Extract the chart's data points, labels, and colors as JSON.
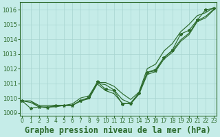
{
  "background_color": "#c5ece8",
  "grid_color": "#a8d5d0",
  "line_color": "#2d6b2d",
  "title": "Graphe pression niveau de la mer (hPa)",
  "ylim": [
    1008.8,
    1016.5
  ],
  "yticks": [
    1009,
    1010,
    1011,
    1012,
    1013,
    1014,
    1015,
    1016
  ],
  "xticks": [
    0,
    1,
    2,
    3,
    4,
    5,
    6,
    7,
    8,
    9,
    10,
    11,
    12,
    13,
    14,
    15,
    16,
    17,
    18,
    19,
    20,
    21,
    22,
    23
  ],
  "x": [
    0,
    1,
    2,
    3,
    4,
    5,
    6,
    7,
    8,
    9,
    10,
    11,
    12,
    13,
    14,
    15,
    16,
    17,
    18,
    19,
    20,
    21,
    22,
    23
  ],
  "main_y": [
    1009.8,
    1009.3,
    1009.4,
    1009.35,
    1009.5,
    1009.5,
    1009.5,
    1009.8,
    1010.05,
    1011.1,
    1010.6,
    1010.5,
    1009.6,
    1009.65,
    1010.35,
    1011.75,
    1011.85,
    1012.75,
    1013.25,
    1014.35,
    1014.6,
    1015.3,
    1016.0,
    1016.1
  ],
  "smooth_upper": [
    1009.8,
    1009.8,
    1009.5,
    1009.5,
    1009.5,
    1009.5,
    1009.6,
    1010.0,
    1010.15,
    1011.05,
    1011.05,
    1010.8,
    1010.3,
    1009.9,
    1010.4,
    1012.0,
    1012.3,
    1013.2,
    1013.7,
    1014.5,
    1015.0,
    1015.6,
    1015.8,
    1016.15
  ],
  "smooth_mid": [
    1009.8,
    1009.8,
    1009.4,
    1009.4,
    1009.4,
    1009.5,
    1009.5,
    1009.85,
    1010.0,
    1011.0,
    1010.9,
    1010.55,
    1009.9,
    1009.65,
    1010.3,
    1011.75,
    1011.95,
    1012.75,
    1013.2,
    1013.95,
    1014.4,
    1015.25,
    1015.55,
    1016.05
  ],
  "smooth_low": [
    1009.8,
    1009.7,
    1009.4,
    1009.35,
    1009.45,
    1009.5,
    1009.5,
    1009.8,
    1009.95,
    1010.95,
    1010.5,
    1010.3,
    1009.65,
    1009.6,
    1010.25,
    1011.6,
    1011.8,
    1012.65,
    1013.1,
    1013.85,
    1014.3,
    1015.2,
    1015.45,
    1016.0
  ],
  "tick_fontsize": 6.5,
  "title_fontsize": 8.5
}
